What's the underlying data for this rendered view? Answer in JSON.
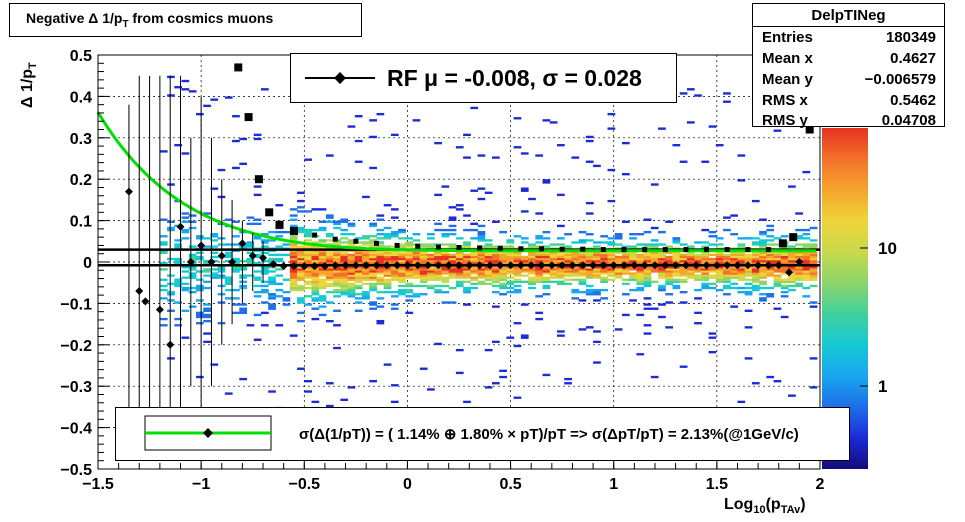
{
  "title": {
    "main": "Negative Δ 1/p",
    "sub": "T",
    "rest": " from cosmics muons"
  },
  "stats": {
    "name": "DelpTINeg",
    "rows": [
      {
        "key": "Entries",
        "value": "180349"
      },
      {
        "key": "Mean x",
        "value": "0.4627"
      },
      {
        "key": "Mean y",
        "value": "−0.006579"
      },
      {
        "key": "RMS x",
        "value": "0.5462"
      },
      {
        "key": "RMS y",
        "value": "0.04708"
      }
    ]
  },
  "legend_top": {
    "text": "RF μ = -0.008, σ =   0.028"
  },
  "legend_bottom": {
    "text": "σ(Δ(1/pT)) = ( 1.14% ⊕  1.80% × pT)/pT => σ(ΔpT/pT) =  2.13%(@1GeV/c)"
  },
  "x_axis": {
    "label_main": "Log",
    "label_sub1": "10",
    "label_mid": "(p",
    "label_sub2": "TAv",
    "label_end": ")"
  },
  "y_axis": {
    "label_main": "Δ 1/p",
    "label_sub": "T"
  },
  "colors": {
    "fit": "#00e000",
    "markers": "#000000"
  },
  "chart_data": {
    "type": "heatmap",
    "title": "Negative Δ 1/pT from cosmics muons",
    "xlabel": "Log10(pTAv)",
    "ylabel": "Δ 1/pT",
    "xlim": [
      -1.5,
      2.0
    ],
    "ylim": [
      -0.5,
      0.5
    ],
    "x_ticks": [
      -1.5,
      -1,
      -0.5,
      0,
      0.5,
      1,
      1.5,
      2
    ],
    "y_ticks": [
      -0.5,
      -0.4,
      -0.3,
      -0.2,
      -0.1,
      0,
      0.1,
      0.2,
      0.3,
      0.4,
      0.5
    ],
    "grid": true,
    "log_z": true,
    "colorbar_ticks": [
      "1",
      "10"
    ],
    "series": [
      {
        "kind": "mean",
        "x": [
          -1.35,
          -1.3,
          -1.27,
          -1.2,
          -1.15,
          -1.1,
          -1.05,
          -1.0,
          -0.95,
          -0.9,
          -0.85,
          -0.8,
          -0.75,
          -0.7,
          -0.65,
          -0.6,
          -0.55,
          -0.5,
          -0.45,
          -0.4,
          -0.35,
          -0.3,
          -0.25,
          -0.2,
          -0.15,
          -0.1,
          -0.05,
          0.0,
          0.05,
          0.1,
          0.15,
          0.2,
          0.25,
          0.3,
          0.35,
          0.4,
          0.45,
          0.5,
          0.55,
          0.6,
          0.65,
          0.7,
          0.75,
          0.8,
          0.85,
          0.9,
          0.95,
          1.0,
          1.05,
          1.1,
          1.15,
          1.2,
          1.25,
          1.3,
          1.35,
          1.4,
          1.45,
          1.5,
          1.55,
          1.6,
          1.65,
          1.7,
          1.75,
          1.8,
          1.85,
          1.9
        ],
        "y": [
          0.17,
          -0.07,
          -0.095,
          -0.115,
          -0.2,
          0.085,
          0.0,
          0.04,
          0.0,
          0.015,
          0.0,
          0.045,
          0.015,
          0.01,
          -0.005,
          -0.01,
          -0.01,
          -0.01,
          -0.01,
          -0.01,
          -0.008,
          -0.008,
          -0.008,
          -0.008,
          -0.008,
          -0.008,
          -0.008,
          -0.008,
          -0.008,
          -0.008,
          -0.008,
          -0.008,
          -0.008,
          -0.008,
          -0.008,
          -0.008,
          -0.008,
          -0.008,
          -0.008,
          -0.008,
          -0.008,
          -0.008,
          -0.008,
          -0.008,
          -0.008,
          -0.008,
          -0.008,
          -0.008,
          -0.008,
          -0.008,
          -0.008,
          -0.008,
          -0.008,
          -0.008,
          -0.008,
          -0.008,
          -0.008,
          -0.008,
          -0.008,
          -0.008,
          -0.008,
          -0.008,
          -0.008,
          -0.008,
          -0.025,
          0.0
        ]
      },
      {
        "kind": "rms",
        "x": [
          -0.82,
          -0.77,
          -0.72,
          -0.67,
          -0.62,
          -0.55,
          -0.45,
          -0.35,
          -0.25,
          -0.15,
          -0.05,
          0.05,
          0.15,
          0.25,
          0.35,
          0.45,
          0.55,
          0.65,
          0.75,
          0.85,
          0.95,
          1.05,
          1.15,
          1.25,
          1.35,
          1.45,
          1.55,
          1.65,
          1.75,
          1.82,
          1.87,
          1.95
        ],
        "y": [
          0.47,
          0.35,
          0.2,
          0.12,
          0.09,
          0.075,
          0.065,
          0.055,
          0.05,
          0.045,
          0.04,
          0.038,
          0.036,
          0.035,
          0.034,
          0.033,
          0.032,
          0.032,
          0.031,
          0.031,
          0.03,
          0.03,
          0.03,
          0.03,
          0.03,
          0.03,
          0.03,
          0.03,
          0.03,
          0.045,
          0.06,
          0.32
        ]
      }
    ]
  }
}
